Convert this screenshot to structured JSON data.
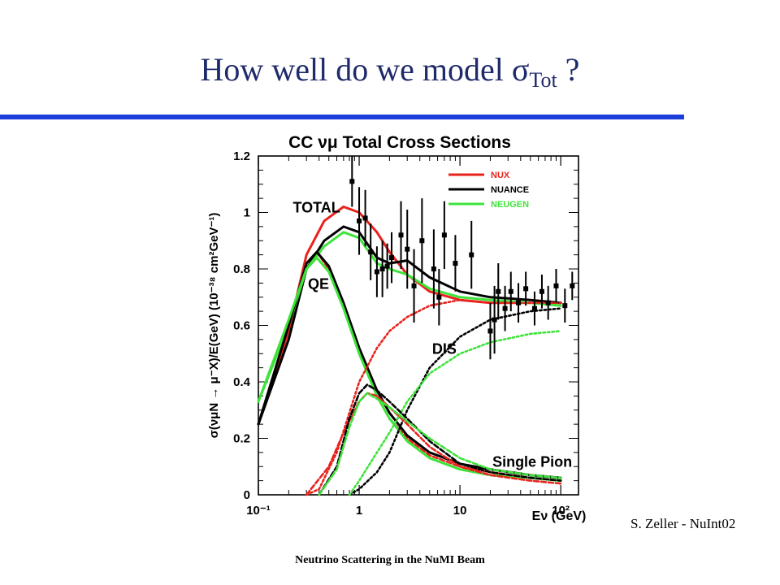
{
  "slide": {
    "title_main": "How well do we model ",
    "title_sigma": "σ",
    "title_sub": "Tot",
    "title_tail": " ?",
    "credit": "S. Zeller - NuInt02",
    "footer": "Neutrino Scattering in the NuMI Beam"
  },
  "colors": {
    "title": "#1f2a6b",
    "rule": "#1c3fdc",
    "nux": "#e8231e",
    "nuance": "#000000",
    "neugen": "#3ee33a"
  },
  "chart_data": {
    "type": "line",
    "title": "CC νμ Total Cross Sections",
    "ylabel": "σ(νμN → μ⁻X)/E(GeV)   (10⁻³⁸ cm²GeV⁻¹)",
    "xlabel": "Eν (GeV)",
    "x_scale": "log",
    "xlim": [
      0.1,
      150
    ],
    "ylim": [
      0,
      1.2
    ],
    "x_ticks": [
      {
        "value": 0.1,
        "label": "10⁻¹"
      },
      {
        "value": 1,
        "label": "1"
      },
      {
        "value": 10,
        "label": "10"
      },
      {
        "value": 100,
        "label": "10²"
      }
    ],
    "y_ticks": [
      0,
      0.2,
      0.4,
      0.6,
      0.8,
      1,
      1.2
    ],
    "legend": [
      "NUX",
      "NUANCE",
      "NEUGEN"
    ],
    "legend_position": "top-right",
    "annotations": [
      "TOTAL",
      "QE",
      "DIS",
      "Single Pion"
    ],
    "series": [
      {
        "name": "NUX",
        "component": "TOTAL",
        "style": "solid",
        "x": [
          0.1,
          0.2,
          0.3,
          0.45,
          0.7,
          1,
          1.5,
          2,
          3,
          5,
          10,
          20,
          50,
          100
        ],
        "y": [
          0.25,
          0.58,
          0.85,
          0.97,
          1.02,
          1.0,
          0.93,
          0.86,
          0.78,
          0.72,
          0.69,
          0.68,
          0.68,
          0.68
        ]
      },
      {
        "name": "NUANCE",
        "component": "TOTAL",
        "style": "solid",
        "x": [
          0.1,
          0.2,
          0.3,
          0.45,
          0.7,
          1,
          1.5,
          2,
          3,
          5,
          10,
          20,
          50,
          100
        ],
        "y": [
          0.25,
          0.55,
          0.8,
          0.9,
          0.95,
          0.93,
          0.84,
          0.82,
          0.83,
          0.77,
          0.72,
          0.7,
          0.69,
          0.68
        ]
      },
      {
        "name": "NEUGEN",
        "component": "TOTAL",
        "style": "solid",
        "x": [
          0.1,
          0.2,
          0.3,
          0.45,
          0.7,
          1,
          1.5,
          2,
          3,
          5,
          10,
          20,
          50,
          100
        ],
        "y": [
          0.33,
          0.6,
          0.8,
          0.88,
          0.93,
          0.91,
          0.82,
          0.8,
          0.78,
          0.73,
          0.7,
          0.69,
          0.68,
          0.67
        ]
      },
      {
        "name": "NUX",
        "component": "QE",
        "style": "dashed",
        "x": [
          0.1,
          0.2,
          0.3,
          0.38,
          0.5,
          0.7,
          1,
          1.5,
          2,
          3,
          5,
          10,
          20,
          50,
          100
        ],
        "y": [
          0.25,
          0.6,
          0.82,
          0.86,
          0.8,
          0.67,
          0.5,
          0.35,
          0.27,
          0.2,
          0.14,
          0.1,
          0.08,
          0.06,
          0.05
        ]
      },
      {
        "name": "NUANCE",
        "component": "QE",
        "style": "solid",
        "x": [
          0.1,
          0.2,
          0.3,
          0.38,
          0.5,
          0.7,
          1,
          1.5,
          2,
          3,
          5,
          10,
          20,
          50,
          100
        ],
        "y": [
          0.25,
          0.6,
          0.82,
          0.86,
          0.81,
          0.68,
          0.52,
          0.37,
          0.29,
          0.21,
          0.15,
          0.11,
          0.09,
          0.07,
          0.06
        ]
      },
      {
        "name": "NEUGEN",
        "component": "QE",
        "style": "solid",
        "x": [
          0.1,
          0.2,
          0.3,
          0.38,
          0.5,
          0.7,
          1,
          1.5,
          2,
          3,
          5,
          10,
          20,
          50,
          100
        ],
        "y": [
          0.33,
          0.62,
          0.8,
          0.84,
          0.79,
          0.66,
          0.5,
          0.35,
          0.27,
          0.19,
          0.13,
          0.09,
          0.07,
          0.06,
          0.05
        ]
      },
      {
        "name": "NUX",
        "component": "DIS",
        "style": "dotted",
        "x": [
          0.3,
          0.4,
          0.6,
          1,
          1.5,
          2,
          3,
          5,
          10,
          20,
          50,
          100
        ],
        "y": [
          0.0,
          0.02,
          0.15,
          0.4,
          0.52,
          0.58,
          0.63,
          0.67,
          0.69,
          0.68,
          0.68,
          0.68
        ]
      },
      {
        "name": "NUANCE",
        "component": "DIS",
        "style": "dotted",
        "x": [
          0.8,
          1,
          1.5,
          2,
          3,
          5,
          10,
          20,
          50,
          100
        ],
        "y": [
          0.0,
          0.02,
          0.08,
          0.15,
          0.3,
          0.45,
          0.56,
          0.62,
          0.65,
          0.66
        ]
      },
      {
        "name": "NEUGEN",
        "component": "DIS",
        "style": "dotted",
        "x": [
          0.8,
          1,
          1.5,
          2,
          3,
          5,
          10,
          20,
          50,
          100
        ],
        "y": [
          0.0,
          0.05,
          0.15,
          0.22,
          0.33,
          0.43,
          0.5,
          0.54,
          0.57,
          0.58
        ]
      },
      {
        "name": "NUX",
        "component": "Single Pion",
        "style": "dashed",
        "x": [
          0.3,
          0.5,
          0.7,
          1,
          1.2,
          1.5,
          2,
          3,
          5,
          10,
          20,
          50,
          100
        ],
        "y": [
          0.0,
          0.1,
          0.22,
          0.33,
          0.36,
          0.35,
          0.31,
          0.25,
          0.17,
          0.1,
          0.07,
          0.05,
          0.04
        ]
      },
      {
        "name": "NUANCE",
        "component": "Single Pion",
        "style": "dashed",
        "x": [
          0.4,
          0.6,
          0.8,
          1,
          1.2,
          1.5,
          2,
          3,
          5,
          10,
          20,
          50,
          100
        ],
        "y": [
          0.0,
          0.1,
          0.27,
          0.36,
          0.39,
          0.37,
          0.33,
          0.27,
          0.19,
          0.11,
          0.08,
          0.06,
          0.05
        ]
      },
      {
        "name": "NEUGEN",
        "component": "Single Pion",
        "style": "dashed",
        "x": [
          0.4,
          0.6,
          0.8,
          1,
          1.2,
          1.5,
          2,
          3,
          5,
          10,
          20,
          50,
          100
        ],
        "y": [
          0.0,
          0.09,
          0.24,
          0.33,
          0.36,
          0.34,
          0.31,
          0.26,
          0.2,
          0.13,
          0.09,
          0.07,
          0.06
        ]
      }
    ],
    "data_points": [
      {
        "x": 0.85,
        "y": 1.11,
        "err": 0.09
      },
      {
        "x": 1.0,
        "y": 0.97,
        "err": 0.12
      },
      {
        "x": 1.15,
        "y": 0.98,
        "err": 0.1
      },
      {
        "x": 1.3,
        "y": 0.86,
        "err": 0.1
      },
      {
        "x": 1.5,
        "y": 0.79,
        "err": 0.09
      },
      {
        "x": 1.7,
        "y": 0.8,
        "err": 0.1
      },
      {
        "x": 1.9,
        "y": 0.81,
        "err": 0.08
      },
      {
        "x": 2.1,
        "y": 0.84,
        "err": 0.09
      },
      {
        "x": 2.6,
        "y": 0.92,
        "err": 0.12
      },
      {
        "x": 3.0,
        "y": 0.87,
        "err": 0.14
      },
      {
        "x": 3.5,
        "y": 0.74,
        "err": 0.13
      },
      {
        "x": 4.2,
        "y": 0.9,
        "err": 0.15
      },
      {
        "x": 5.5,
        "y": 0.8,
        "err": 0.14
      },
      {
        "x": 6.2,
        "y": 0.7,
        "err": 0.1
      },
      {
        "x": 7.0,
        "y": 0.92,
        "err": 0.12
      },
      {
        "x": 9.0,
        "y": 0.82,
        "err": 0.1
      },
      {
        "x": 13.0,
        "y": 0.85,
        "err": 0.12
      },
      {
        "x": 20.0,
        "y": 0.58,
        "err": 0.1
      },
      {
        "x": 22.0,
        "y": 0.62,
        "err": 0.12
      },
      {
        "x": 24.0,
        "y": 0.72,
        "err": 0.1
      },
      {
        "x": 28.0,
        "y": 0.66,
        "err": 0.08
      },
      {
        "x": 32.0,
        "y": 0.72,
        "err": 0.07
      },
      {
        "x": 38.0,
        "y": 0.68,
        "err": 0.07
      },
      {
        "x": 45.0,
        "y": 0.73,
        "err": 0.06
      },
      {
        "x": 55.0,
        "y": 0.66,
        "err": 0.06
      },
      {
        "x": 65.0,
        "y": 0.72,
        "err": 0.06
      },
      {
        "x": 75.0,
        "y": 0.68,
        "err": 0.06
      },
      {
        "x": 90.0,
        "y": 0.74,
        "err": 0.06
      },
      {
        "x": 110.0,
        "y": 0.67,
        "err": 0.06
      },
      {
        "x": 130.0,
        "y": 0.74,
        "err": 0.05
      }
    ]
  }
}
